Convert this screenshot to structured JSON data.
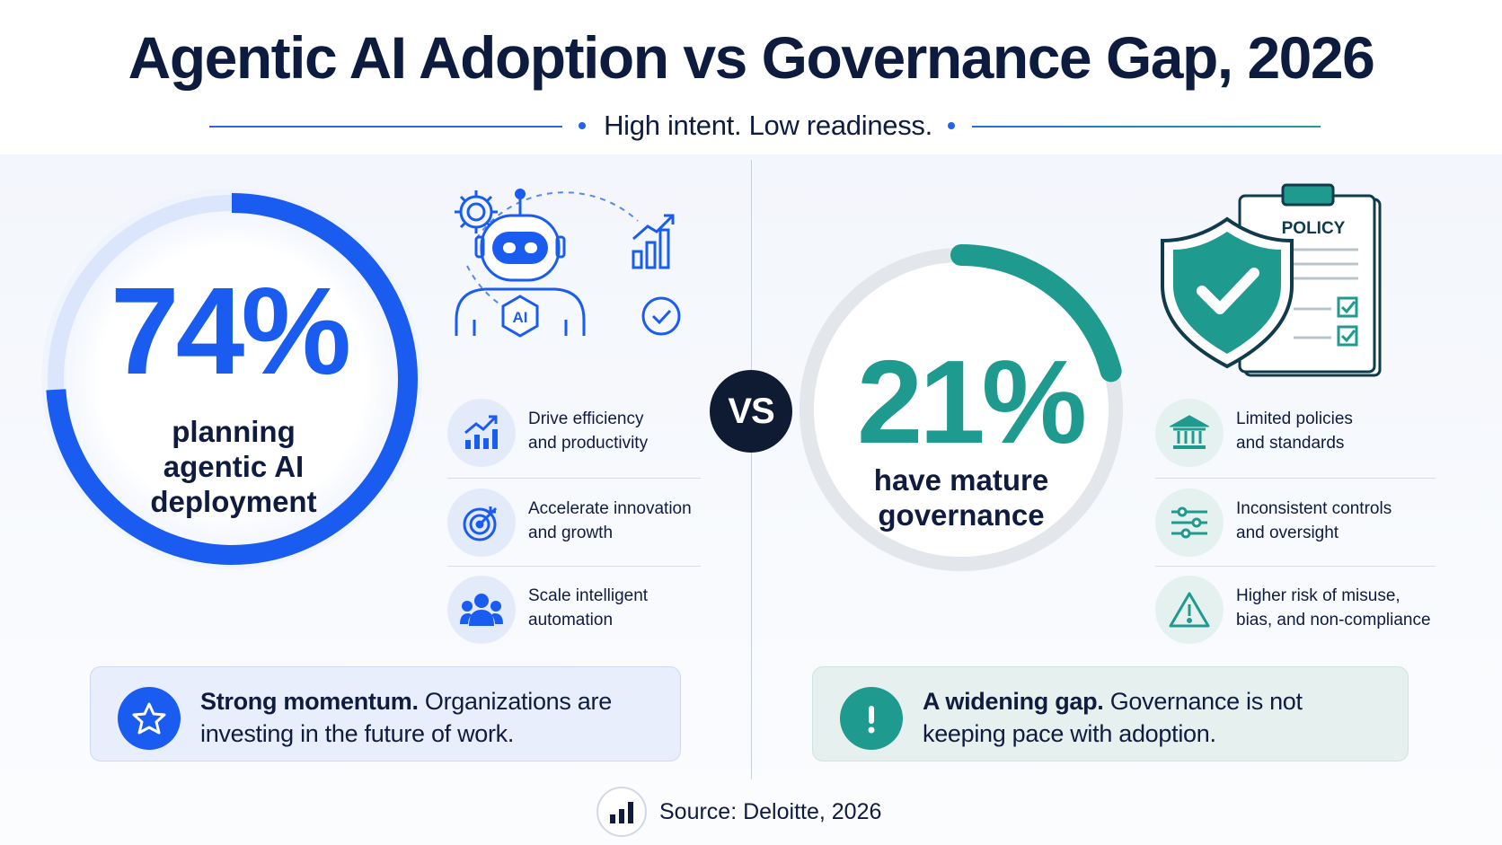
{
  "header": {
    "title": "Agentic AI Adoption vs Governance Gap, 2026",
    "subtitle": "High intent. Low readiness."
  },
  "colors": {
    "blue_accent": "#1a5cf0",
    "teal_accent": "#1f9a8f",
    "navy_text": "#0f1c3f"
  },
  "adoption": {
    "percent": "74%",
    "value_fraction": 0.74,
    "label_lines": [
      "planning",
      "agentic AI",
      "deployment"
    ],
    "illustration_icons": [
      "gear-icon",
      "robot-icon",
      "bar-chart-up-icon",
      "check-circle-icon"
    ],
    "robot_chest_text": "AI",
    "features": [
      {
        "icon": "chart-growth-icon",
        "line1": "Drive efficiency",
        "line2": "and productivity"
      },
      {
        "icon": "target-icon",
        "line1": "Accelerate innovation",
        "line2": "and growth"
      },
      {
        "icon": "people-icon",
        "line1": "Scale intelligent",
        "line2": "automation"
      }
    ],
    "callout": {
      "icon": "star-icon",
      "bold": "Strong momentum.",
      "rest_line1": " Organizations are",
      "line2": "investing in the future of work."
    }
  },
  "vs_label": "VS",
  "governance": {
    "percent": "21%",
    "value_fraction": 0.21,
    "label_lines": [
      "have mature",
      "governance"
    ],
    "policy_label": "POLICY",
    "illustration_icons": [
      "shield-check-icon",
      "clipboard-icon"
    ],
    "features": [
      {
        "icon": "bank-icon",
        "line1": "Limited policies",
        "line2": "and standards"
      },
      {
        "icon": "sliders-icon",
        "line1": "Inconsistent controls",
        "line2": "and oversight"
      },
      {
        "icon": "warning-icon",
        "line1": "Higher risk of misuse,",
        "line2": "bias, and non-compliance"
      }
    ],
    "callout": {
      "icon": "exclamation-icon",
      "bold": "A widening gap.",
      "rest_line1": " Governance is not",
      "line2": "keeping pace with adoption."
    }
  },
  "source": {
    "icon": "bar-chart-icon",
    "text": "Source: Deloitte, 2026"
  }
}
